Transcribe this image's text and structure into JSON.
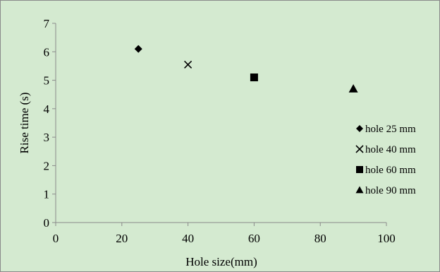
{
  "chart_data": {
    "type": "scatter",
    "xlabel": "Hole size(mm)",
    "ylabel": "Rise time (s)",
    "xlim": [
      0,
      100
    ],
    "ylim": [
      0,
      7
    ],
    "xticks": [
      0,
      20,
      40,
      60,
      80,
      100
    ],
    "yticks": [
      0,
      1,
      2,
      3,
      4,
      5,
      6,
      7
    ],
    "grid": false,
    "legend_position": "right",
    "series": [
      {
        "name": "hole 25 mm",
        "marker": "diamond",
        "x": [
          25
        ],
        "y": [
          6.1
        ]
      },
      {
        "name": "hole 40 mm",
        "marker": "x",
        "x": [
          40
        ],
        "y": [
          5.55
        ]
      },
      {
        "name": "hole 60 mm",
        "marker": "square",
        "x": [
          60
        ],
        "y": [
          5.1
        ]
      },
      {
        "name": "hole 90 mm",
        "marker": "triangle",
        "x": [
          90
        ],
        "y": [
          4.7
        ]
      }
    ]
  },
  "colors": {
    "plot_background": "#d4ead0",
    "axis": "#8a8a8a",
    "marker": "#000000"
  }
}
